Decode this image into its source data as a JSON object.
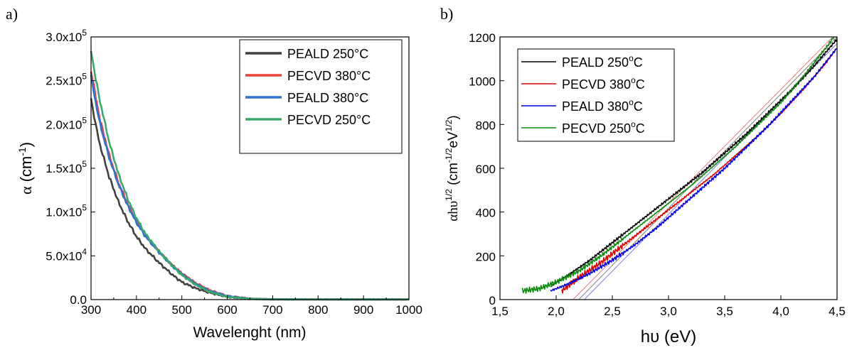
{
  "chart_data": [
    {
      "panel_label": "a)",
      "type": "line",
      "xlabel": "Wavelenght (nm)",
      "ylabel_symbol": "α",
      "ylabel_unit_base": "(cm",
      "ylabel_unit_sup": "-1",
      "ylabel_unit_close": ")",
      "xlim": [
        300,
        1000
      ],
      "ylim": [
        0,
        300000
      ],
      "x_ticks": [
        "300",
        "400",
        "500",
        "600",
        "700",
        "800",
        "900",
        "1000"
      ],
      "y_ticks": [
        {
          "mantissa": "0.0",
          "exp": ""
        },
        {
          "mantissa": "5.0x10",
          "exp": "4"
        },
        {
          "mantissa": "1.0x10",
          "exp": "5"
        },
        {
          "mantissa": "1.5x10",
          "exp": "5"
        },
        {
          "mantissa": "2.0x10",
          "exp": "5"
        },
        {
          "mantissa": "2.5x10",
          "exp": "5"
        },
        {
          "mantissa": "3.0x10",
          "exp": "5"
        }
      ],
      "legend_position": "top-right",
      "grid": false,
      "series": [
        {
          "name": "PEALD 250°C",
          "color": "#404040",
          "x": [
            300,
            310,
            320,
            340,
            360,
            380,
            400,
            420,
            450,
            480,
            500,
            530,
            560,
            600,
            650,
            700,
            800,
            900,
            1000
          ],
          "y": [
            230000,
            200000,
            176000,
            140000,
            112000,
            90000,
            72000,
            58000,
            42000,
            28000,
            20000,
            13000,
            8000,
            3000,
            800,
            200,
            100,
            100,
            100
          ]
        },
        {
          "name": "PECVD 380°C",
          "color": "#e8403a",
          "x": [
            300,
            310,
            320,
            340,
            360,
            380,
            400,
            420,
            450,
            480,
            500,
            530,
            560,
            600,
            650,
            700,
            800,
            900,
            1000
          ],
          "y": [
            262000,
            232000,
            205000,
            165000,
            134000,
            110000,
            90000,
            74000,
            55000,
            39000,
            30000,
            19000,
            11000,
            4000,
            1000,
            300,
            150,
            150,
            150
          ]
        },
        {
          "name": "PEALD 380°C",
          "color": "#2f72d1",
          "x": [
            300,
            310,
            320,
            340,
            360,
            380,
            400,
            420,
            450,
            480,
            500,
            530,
            560,
            600,
            650,
            700,
            800,
            900,
            1000
          ],
          "y": [
            255000,
            226000,
            200000,
            162000,
            132000,
            108000,
            88000,
            72000,
            54000,
            38000,
            29000,
            18000,
            10000,
            4000,
            1000,
            300,
            150,
            150,
            150
          ]
        },
        {
          "name": "PECVD 250°C",
          "color": "#3aaa6a",
          "x": [
            300,
            310,
            320,
            340,
            360,
            380,
            400,
            420,
            450,
            480,
            500,
            530,
            560,
            600,
            650,
            700,
            800,
            900,
            1000
          ],
          "y": [
            285000,
            253000,
            226000,
            180000,
            144000,
            116000,
            93000,
            75000,
            55000,
            38000,
            28000,
            17000,
            9000,
            3000,
            800,
            300,
            200,
            200,
            200
          ]
        }
      ]
    },
    {
      "panel_label": "b)",
      "type": "line",
      "xlabel": "hυ (eV)",
      "ylabel_base": "αhυ",
      "ylabel_sup1": "1/2",
      "ylabel_mid": " (cm",
      "ylabel_sup2": "-1/2",
      "ylabel_mid2": "eV",
      "ylabel_sup3": "1/2",
      "ylabel_close": ")",
      "xlim": [
        1.5,
        4.5
      ],
      "ylim": [
        0,
        1200
      ],
      "x_ticks": [
        "1,5",
        "2,0",
        "2,5",
        "3,0",
        "3,5",
        "4,0",
        "4,5"
      ],
      "y_ticks": [
        "0",
        "200",
        "400",
        "600",
        "800",
        "1000",
        "1200"
      ],
      "legend_position": "top-left",
      "grid": false,
      "series": [
        {
          "name_base": "PEALD 250",
          "name_sup": "o",
          "name_unit": "C",
          "color": "#000000",
          "x": [
            1.95,
            2.1,
            2.3,
            2.5,
            2.7,
            2.9,
            3.1,
            3.3,
            3.5,
            3.7,
            3.9,
            4.1,
            4.3,
            4.5
          ],
          "y": [
            60,
            110,
            180,
            260,
            340,
            420,
            500,
            580,
            670,
            760,
            860,
            960,
            1070,
            1190
          ]
        },
        {
          "name_base": "PECVD 380",
          "name_sup": "o",
          "name_unit": "C",
          "color": "#e00000",
          "x": [
            2.05,
            2.2,
            2.4,
            2.6,
            2.8,
            3.0,
            3.2,
            3.4,
            3.6,
            3.8,
            4.0,
            4.2,
            4.4,
            4.5
          ],
          "y": [
            40,
            100,
            170,
            250,
            330,
            410,
            490,
            570,
            660,
            750,
            850,
            960,
            1080,
            1150
          ]
        },
        {
          "name_base": "PEALD 380",
          "name_sup": "o",
          "name_unit": "C",
          "color": "#0000e0",
          "x": [
            1.95,
            2.1,
            2.3,
            2.5,
            2.7,
            2.9,
            3.1,
            3.3,
            3.5,
            3.7,
            3.9,
            4.1,
            4.3,
            4.5
          ],
          "y": [
            40,
            70,
            120,
            180,
            250,
            330,
            420,
            510,
            600,
            700,
            800,
            910,
            1020,
            1150
          ]
        },
        {
          "name_base": "PECVD 250",
          "name_sup": "o",
          "name_unit": "C",
          "color": "#0a8a0a",
          "x": [
            1.7,
            1.85,
            2.0,
            2.2,
            2.4,
            2.6,
            2.8,
            3.0,
            3.2,
            3.4,
            3.6,
            3.8,
            4.0,
            4.2,
            4.4,
            4.5
          ],
          "y": [
            40,
            50,
            80,
            130,
            200,
            280,
            360,
            440,
            520,
            610,
            700,
            800,
            900,
            1020,
            1150,
            1220
          ]
        }
      ],
      "fit_lines": [
        {
          "color": "#e08080",
          "x": [
            2.15,
            4.5
          ],
          "y": [
            0,
            1220
          ]
        },
        {
          "color": "#808080",
          "x": [
            2.2,
            4.5
          ],
          "y": [
            0,
            1200
          ]
        },
        {
          "color": "#8080e0",
          "x": [
            2.25,
            4.5
          ],
          "y": [
            0,
            1170
          ]
        }
      ]
    }
  ]
}
